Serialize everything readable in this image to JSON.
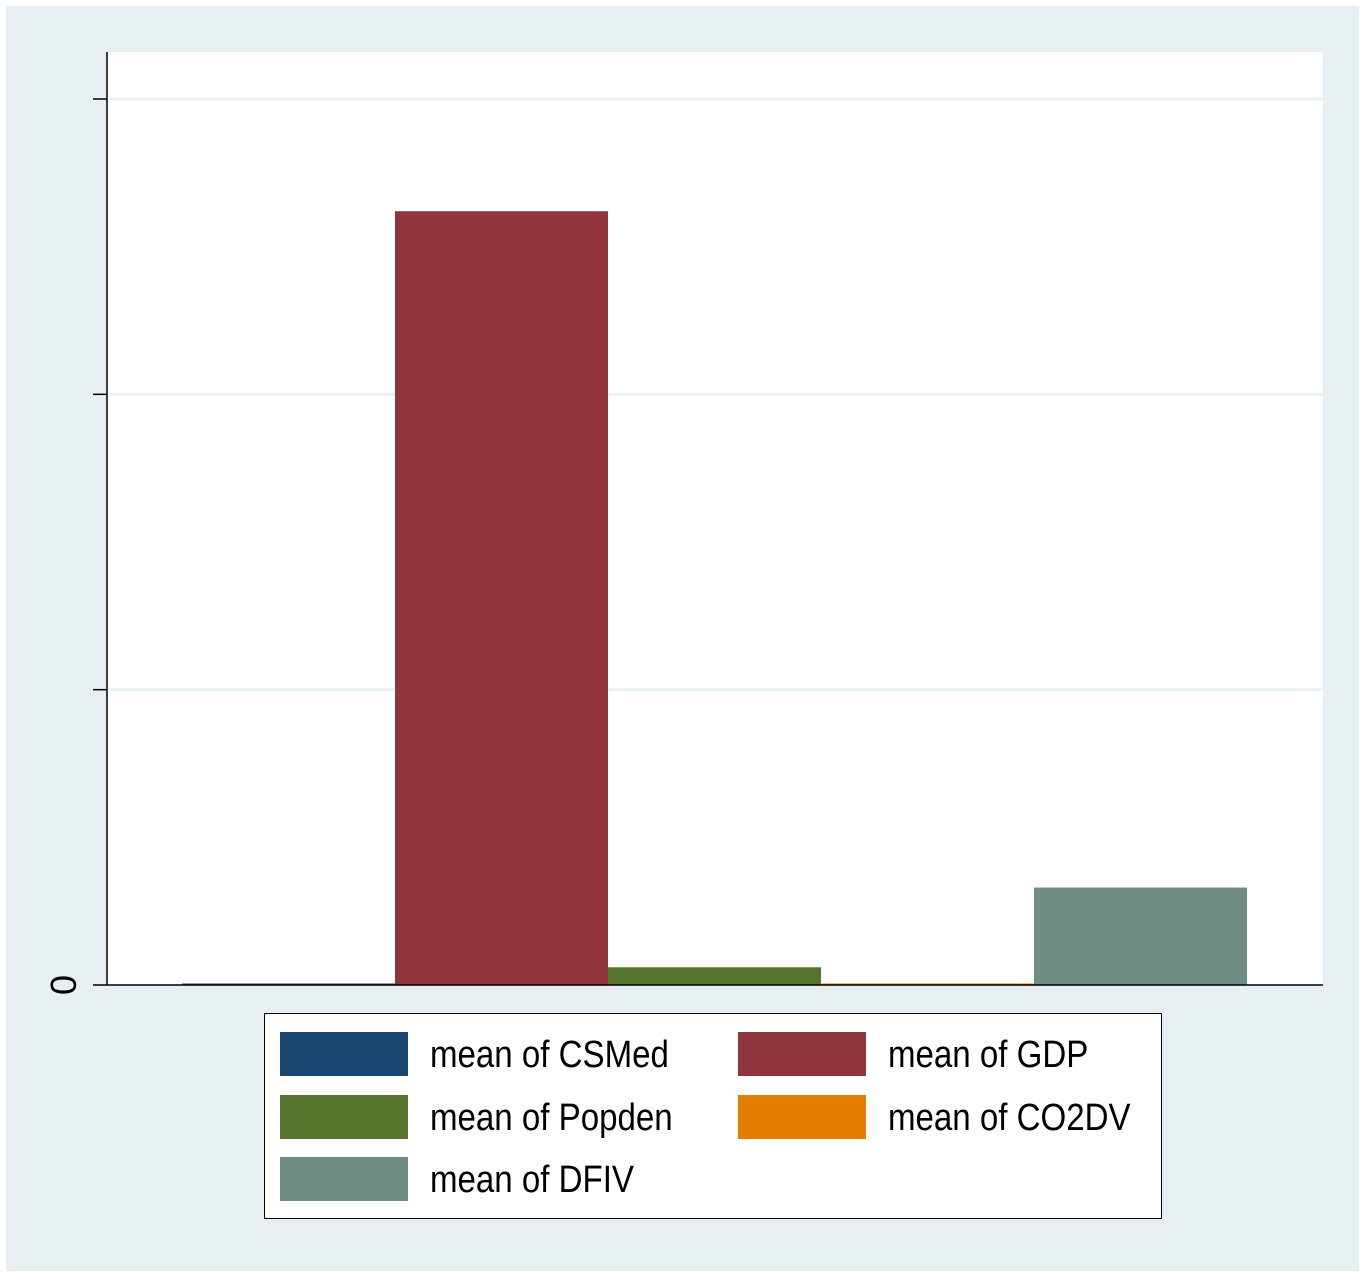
{
  "chart_data": {
    "type": "bar",
    "title": "",
    "xlabel": "",
    "ylabel": "",
    "ylim": [
      0,
      3
    ],
    "yticks": [
      0,
      1,
      2,
      3
    ],
    "ytick_labels": [
      "0",
      "",
      "",
      ""
    ],
    "grid": true,
    "legend_position": "bottom",
    "series": [
      {
        "name": "mean of CSMed",
        "value": 0.004,
        "color": "#1a476f"
      },
      {
        "name": "mean of GDP",
        "value": 2.62,
        "color": "#90353b"
      },
      {
        "name": "mean of Popden",
        "value": 0.06,
        "color": "#55752f"
      },
      {
        "name": "mean of CO2DV",
        "value": 0.003,
        "color": "#e37e00"
      },
      {
        "name": "mean of DFIV",
        "value": 0.33,
        "color": "#6e8e84"
      }
    ]
  }
}
